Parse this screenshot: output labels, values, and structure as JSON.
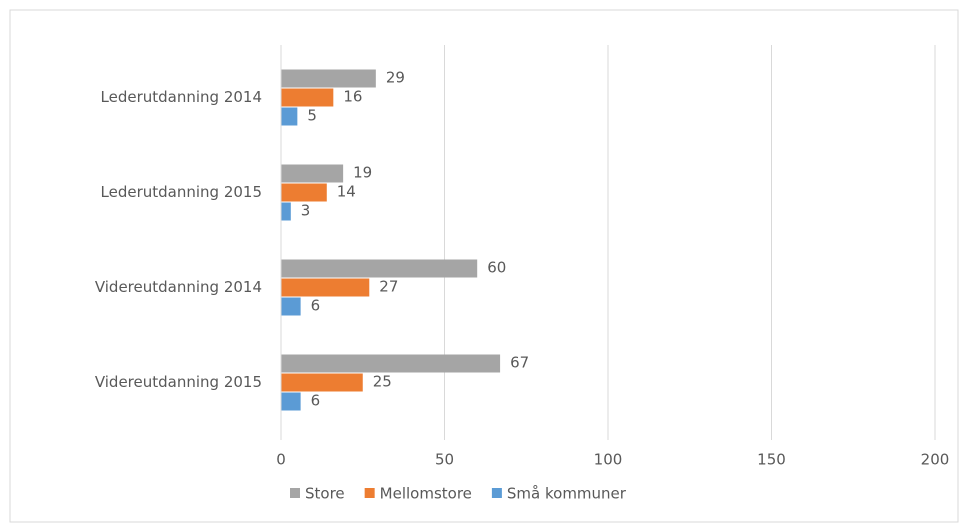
{
  "chart_data": {
    "type": "bar",
    "orientation": "horizontal",
    "categories": [
      "Lederutdanning 2014",
      "Lederutdanning 2015",
      "Videreutdanning 2014",
      "Videreutdanning 2015"
    ],
    "series": [
      {
        "name": "Store",
        "color": "#a5a5a5",
        "values": [
          29,
          19,
          60,
          67
        ]
      },
      {
        "name": "Mellomstore",
        "color": "#ed7d31",
        "values": [
          16,
          14,
          27,
          25
        ]
      },
      {
        "name": "Små kommuner",
        "color": "#5b9bd5",
        "values": [
          5,
          3,
          6,
          6
        ]
      }
    ],
    "xlim": [
      0,
      200
    ],
    "xticks": [
      0,
      50,
      100,
      150,
      200
    ],
    "grid": true,
    "legend": "bottom"
  }
}
